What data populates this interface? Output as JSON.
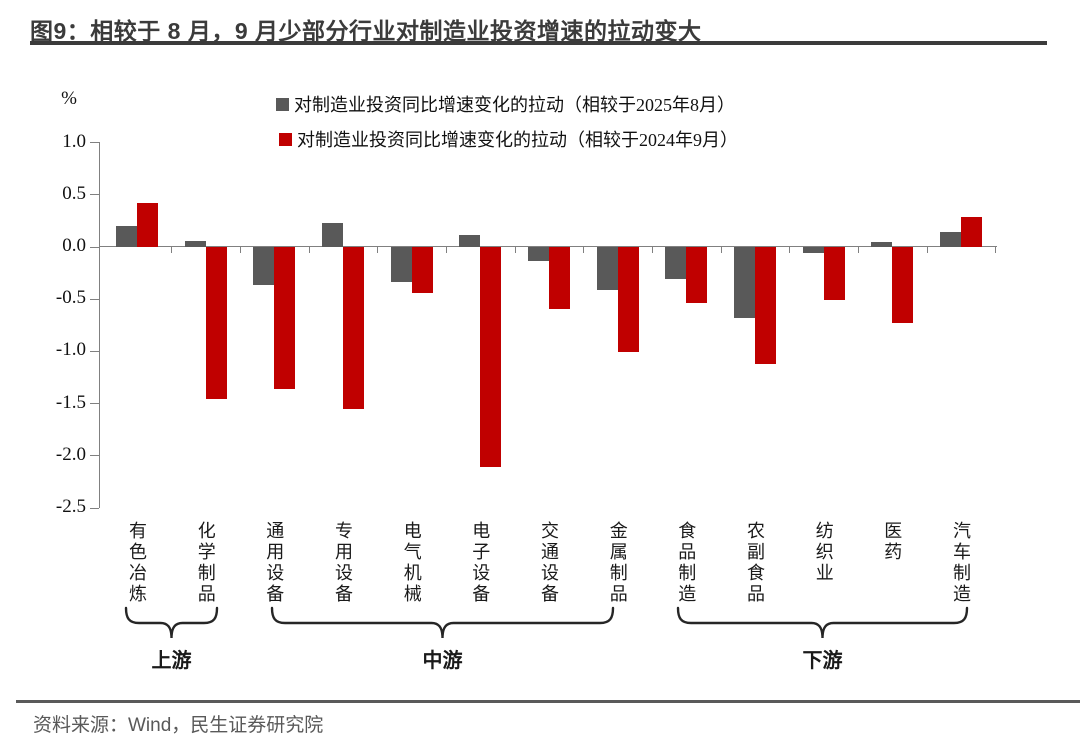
{
  "page": {
    "title": "图9：相较于 8 月，9 月少部分行业对制造业投资增速的拉动变大",
    "unit_label": "%",
    "source": "资料来源：Wind，民生证券研究院"
  },
  "chart_data": {
    "type": "bar",
    "title": "相较于 8 月，9 月少部分行业对制造业投资增速的拉动变大",
    "ylabel": "%",
    "ylim": [
      -2.5,
      1.0
    ],
    "yticks": [
      "1.0",
      "0.5",
      "0.0",
      "-0.5",
      "-1.0",
      "-1.5",
      "-2.0",
      "-2.5"
    ],
    "grid": false,
    "legend_position": "top",
    "categories": [
      "有色冶炼",
      "化学制品",
      "通用设备",
      "专用设备",
      "电气机械",
      "电子设备",
      "交通设备",
      "金属制品",
      "食品制造",
      "农副食品",
      "纺织业",
      "医药",
      "汽车制造"
    ],
    "series": [
      {
        "name": "对制造业投资同比增速变化的拉动（相较于2025年8月）",
        "color": "#595959",
        "values": [
          0.2,
          0.06,
          -0.36,
          0.23,
          -0.33,
          0.12,
          -0.13,
          -0.41,
          -0.31,
          -0.68,
          -0.06,
          0.05,
          0.14
        ]
      },
      {
        "name": "对制造业投资同比增速变化的拉动（相较于2024年9月）",
        "color": "#C00000",
        "values": [
          0.42,
          -1.46,
          -1.36,
          -1.55,
          -0.44,
          -2.11,
          -0.59,
          -1.01,
          -0.54,
          -1.12,
          -0.51,
          -0.73,
          0.29
        ]
      }
    ],
    "groups": [
      {
        "label": "上游",
        "start": 0,
        "end": 1
      },
      {
        "label": "中游",
        "start": 2,
        "end": 7
      },
      {
        "label": "下游",
        "start": 8,
        "end": 12
      }
    ]
  }
}
